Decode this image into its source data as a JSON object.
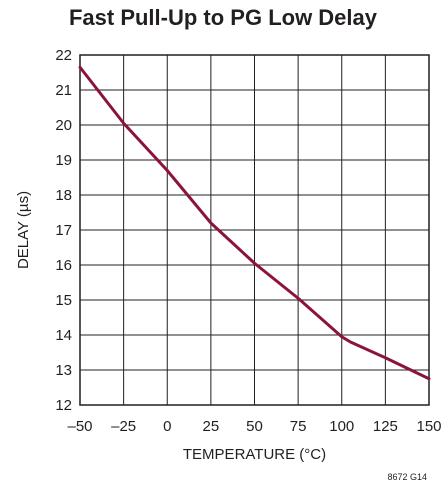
{
  "chart_data": {
    "type": "line",
    "title": "Fast Pull-Up to PG Low Delay",
    "xlabel": "TEMPERATURE (°C)",
    "ylabel": "DELAY (µs)",
    "xlim": [
      -50,
      150
    ],
    "ylim": [
      12,
      22
    ],
    "xticks": [
      -50,
      -25,
      0,
      25,
      50,
      75,
      100,
      125,
      150
    ],
    "yticks": [
      12,
      13,
      14,
      15,
      16,
      17,
      18,
      19,
      20,
      21,
      22
    ],
    "xtick_labels": [
      "–50",
      "–25",
      "0",
      "25",
      "50",
      "75",
      "100",
      "125",
      "150"
    ],
    "ytick_labels": [
      "12",
      "13",
      "14",
      "15",
      "16",
      "17",
      "18",
      "19",
      "20",
      "21",
      "22"
    ],
    "grid": true,
    "series": [
      {
        "x": [
          -50,
          -25,
          0,
          25,
          50,
          75,
          100,
          105,
          125,
          150
        ],
        "y": [
          21.65,
          20.05,
          18.7,
          17.2,
          16.05,
          15.05,
          13.95,
          13.8,
          13.35,
          12.75
        ],
        "color": "#8b1538"
      }
    ],
    "figure_id": "8672 G14"
  }
}
